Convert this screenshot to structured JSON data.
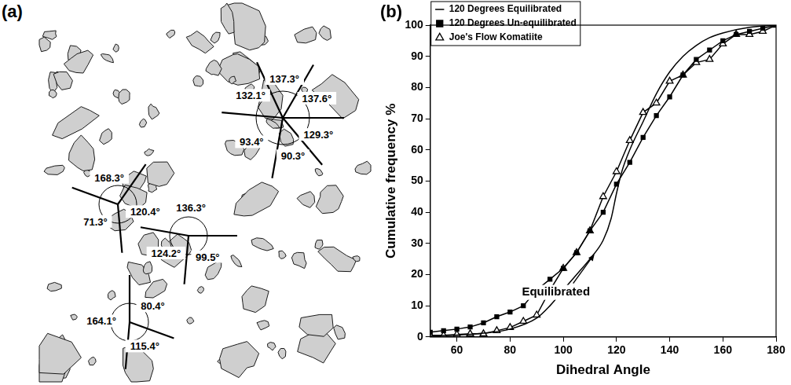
{
  "diagram": {
    "panel_label": "(a)",
    "junctions": [
      {
        "angles": [
          "137.3°",
          "137.6°",
          "129.3°",
          "90.3°",
          "93.4°",
          "132.1°"
        ]
      },
      {
        "angles": [
          "120.4°",
          "71.3°",
          "168.3°"
        ]
      },
      {
        "angles": [
          "136.3°",
          "99.5°",
          "124.2°"
        ]
      },
      {
        "angles": [
          "80.4°",
          "115.4°",
          "164.1°"
        ]
      }
    ]
  },
  "chart_data": {
    "type": "line",
    "panel_label": "(b)",
    "x_label": "Dihedral Angle",
    "y_label": "Cumulative frequency %",
    "xlim": [
      50,
      180
    ],
    "xticks": [
      60,
      80,
      100,
      120,
      140,
      160,
      180
    ],
    "ylim": [
      0,
      100
    ],
    "yticks": [
      0,
      10,
      20,
      30,
      40,
      50,
      60,
      70,
      80,
      90,
      100
    ],
    "grid": false,
    "legend": "upper left",
    "series": [
      {
        "name": "120 Degrees Equilibrated",
        "color": "#000000",
        "marker": "none",
        "line_style": "smooth",
        "x": [
          50,
          60,
          70,
          80,
          90,
          95,
          100,
          105,
          110,
          115,
          118,
          120,
          122,
          125,
          130,
          135,
          140,
          145,
          150,
          155,
          160,
          170,
          180
        ],
        "values": [
          0.3,
          0.6,
          1.2,
          2.5,
          6,
          10,
          15,
          20,
          25,
          31,
          38,
          46,
          53,
          60,
          69,
          78,
          85,
          90,
          93.5,
          96,
          97.5,
          99.3,
          100
        ]
      },
      {
        "name": "120 Degrees Un-equilibrated",
        "color": "#000000",
        "marker": "square",
        "line_style": "solid",
        "x": [
          50,
          55,
          60,
          65,
          70,
          75,
          80,
          85,
          90,
          95,
          100,
          105,
          110,
          115,
          120,
          125,
          130,
          135,
          140,
          145,
          150,
          155,
          160,
          165,
          170,
          175,
          180
        ],
        "values": [
          1.5,
          2,
          2.5,
          3.2,
          4.5,
          6.5,
          8,
          10,
          15,
          18.5,
          22,
          27,
          34,
          40,
          49,
          56,
          64,
          71,
          77,
          84,
          89,
          92,
          95,
          97,
          98,
          99,
          100
        ]
      },
      {
        "name": "Joe's Flow Komatiite",
        "color": "#000000",
        "marker": "triangle",
        "line_style": "solid",
        "x": [
          50,
          55,
          60,
          65,
          70,
          75,
          80,
          85,
          90,
          95,
          100,
          105,
          110,
          115,
          120,
          125,
          130,
          135,
          140,
          145,
          150,
          155,
          160,
          165,
          170,
          175,
          180
        ],
        "values": [
          0.5,
          0.5,
          0.8,
          1,
          1,
          2,
          3,
          5,
          7,
          15,
          22,
          27,
          34,
          45,
          53,
          63,
          72,
          75,
          82,
          84,
          88,
          89,
          94,
          97,
          97,
          98,
          100
        ]
      }
    ],
    "annotations": [
      {
        "text": "Equilibrated",
        "x": 112,
        "y": 27
      }
    ]
  }
}
